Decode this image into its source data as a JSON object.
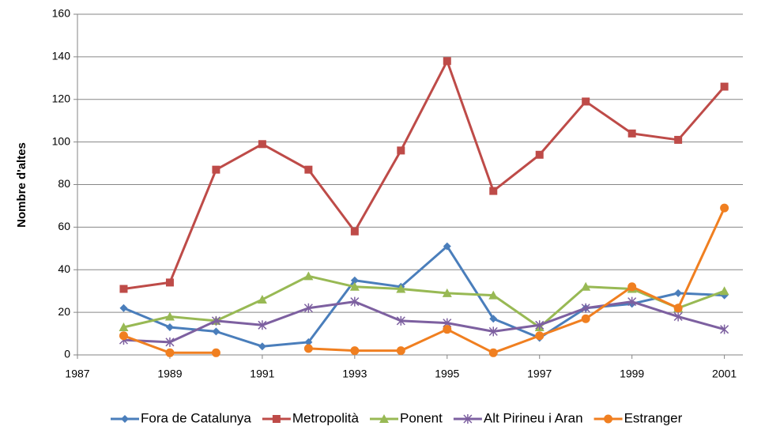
{
  "chart_data": {
    "type": "line",
    "y_label": "Nombre d'altes",
    "x": [
      1988,
      1989,
      1990,
      1991,
      1992,
      1993,
      1994,
      1995,
      1996,
      1997,
      1998,
      1999,
      2000,
      2001
    ],
    "xlim": [
      1987,
      2001.4
    ],
    "xticks": [
      1987,
      1989,
      1991,
      1993,
      1995,
      1997,
      1999,
      2001
    ],
    "ylim": [
      0,
      160
    ],
    "yticks": [
      0,
      20,
      40,
      60,
      80,
      100,
      120,
      140,
      160
    ],
    "grid": true,
    "legend": "bottom",
    "series": [
      {
        "name": "Fora de Catalunya",
        "color": "#4a7ebb",
        "marker": "diamond",
        "values": [
          22,
          13,
          11,
          4,
          6,
          35,
          32,
          51,
          17,
          8,
          22,
          24,
          29,
          28
        ]
      },
      {
        "name": "Metropolità",
        "color": "#be4b48",
        "marker": "square",
        "values": [
          31,
          34,
          87,
          99,
          87,
          58,
          96,
          138,
          77,
          94,
          119,
          104,
          101,
          126
        ]
      },
      {
        "name": "Ponent",
        "color": "#98b954",
        "marker": "triangle",
        "values": [
          13,
          18,
          16,
          26,
          37,
          32,
          31,
          29,
          28,
          13,
          32,
          31,
          22,
          30
        ]
      },
      {
        "name": "Alt Pirineu i Aran",
        "color": "#7d60a0",
        "marker": "star",
        "values": [
          7,
          6,
          16,
          14,
          22,
          25,
          16,
          15,
          11,
          14,
          22,
          25,
          18,
          12
        ]
      },
      {
        "name": "Estranger",
        "color": "#f07f20",
        "marker": "circle",
        "values": [
          9,
          1,
          1,
          null,
          3,
          2,
          2,
          12,
          1,
          9,
          17,
          32,
          22,
          69
        ]
      }
    ]
  }
}
